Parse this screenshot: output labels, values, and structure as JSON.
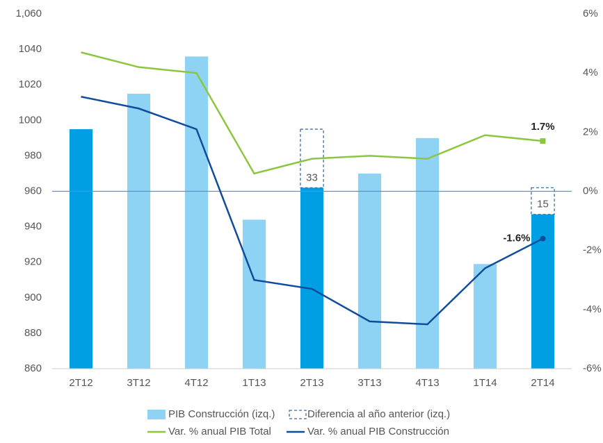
{
  "chart_data": {
    "type": "bar_line",
    "categories": [
      "2T12",
      "3T12",
      "4T12",
      "1T13",
      "2T13",
      "3T13",
      "4T13",
      "1T14",
      "2T14"
    ],
    "bars": {
      "name": "PIB Construcción (izq.)",
      "color": "#8fd3f4",
      "colors": [
        "#009fe3",
        "#8fd3f4",
        "#8fd3f4",
        "#8fd3f4",
        "#009fe3",
        "#8fd3f4",
        "#8fd3f4",
        "#8fd3f4",
        "#009fe3"
      ],
      "values": [
        995,
        1015,
        1036,
        944,
        962,
        970,
        990,
        919,
        947
      ]
    },
    "difference": {
      "name": "Diferencia al año anterior (izq.)",
      "color": "#3a6ea5",
      "values": [
        null,
        null,
        null,
        null,
        33,
        null,
        null,
        null,
        15
      ]
    },
    "series": [
      {
        "name": "Var. % anual PIB Total",
        "color": "#8cc63f",
        "axis": "y2",
        "values": [
          4.7,
          4.2,
          4.0,
          0.6,
          1.1,
          1.2,
          1.1,
          1.9,
          1.7
        ],
        "value_labels": [
          null,
          null,
          null,
          null,
          null,
          null,
          null,
          null,
          "1.7%"
        ]
      },
      {
        "name": "Var. % anual PIB Construcción",
        "color": "#0f4c9c",
        "axis": "y2",
        "values": [
          3.2,
          2.8,
          2.1,
          -3.0,
          -3.3,
          -4.4,
          -4.5,
          -2.6,
          -1.6
        ],
        "value_labels": [
          null,
          null,
          null,
          null,
          null,
          null,
          null,
          null,
          "-1.6%"
        ]
      }
    ],
    "ylim": [
      860,
      1060
    ],
    "yticks": [
      860,
      880,
      900,
      920,
      940,
      960,
      980,
      1000,
      1020,
      1040,
      {
        "value": 1060,
        "label": "1,060"
      }
    ],
    "y2lim": [
      -6,
      6
    ],
    "y2ticks": [
      {
        "value": -6,
        "label": "-6%"
      },
      {
        "value": -4,
        "label": "-4%"
      },
      {
        "value": -2,
        "label": "-2%"
      },
      {
        "value": 0,
        "label": "0%"
      },
      {
        "value": 2,
        "label": "2%"
      },
      {
        "value": 4,
        "label": "4%"
      },
      {
        "value": 6,
        "label": "6%"
      }
    ],
    "zero_line": true,
    "zero_line_color": "#5b8fd0",
    "legend": "bottom"
  }
}
